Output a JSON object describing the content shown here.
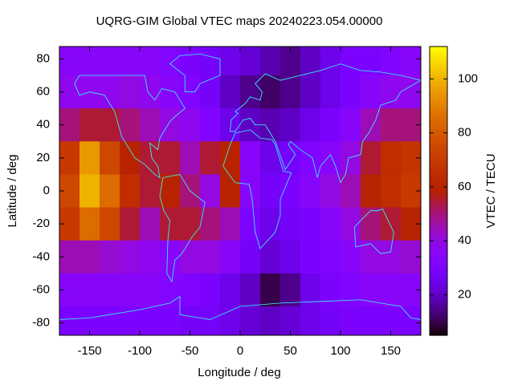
{
  "chart_data": {
    "type": "heatmap",
    "title": "UQRG-GIM Global VTEC maps 20240223.054.00000",
    "x_label": "Longitude / deg",
    "y_label": "Latitude / deg",
    "colorbar_label": "VTEC / TECU",
    "palette": "gnuplot-rgbformulae-7-5-15",
    "x": [
      -170,
      -150,
      -130,
      -110,
      -90,
      -70,
      -50,
      -30,
      -10,
      10,
      30,
      50,
      70,
      90,
      110,
      130,
      150,
      170
    ],
    "y": [
      80,
      60,
      40,
      20,
      0,
      -20,
      -40,
      -60,
      -80
    ],
    "z": [
      [
        35,
        35,
        35,
        35,
        35,
        33,
        30,
        28,
        25,
        22,
        18,
        15,
        20,
        25,
        30,
        30,
        32,
        35
      ],
      [
        38,
        38,
        38,
        40,
        38,
        35,
        32,
        28,
        20,
        15,
        12,
        15,
        20,
        25,
        30,
        35,
        38,
        38
      ],
      [
        50,
        55,
        55,
        50,
        45,
        40,
        38,
        32,
        25,
        20,
        18,
        20,
        25,
        30,
        35,
        45,
        50,
        50
      ],
      [
        70,
        95,
        75,
        60,
        55,
        55,
        45,
        55,
        60,
        35,
        25,
        28,
        32,
        35,
        40,
        55,
        65,
        68
      ],
      [
        75,
        100,
        85,
        65,
        55,
        60,
        50,
        40,
        60,
        35,
        28,
        30,
        35,
        40,
        45,
        60,
        65,
        70
      ],
      [
        70,
        85,
        75,
        55,
        45,
        55,
        55,
        50,
        45,
        30,
        25,
        28,
        30,
        35,
        40,
        50,
        55,
        60
      ],
      [
        45,
        45,
        42,
        40,
        38,
        35,
        40,
        40,
        35,
        28,
        22,
        25,
        30,
        32,
        35,
        40,
        40,
        42
      ],
      [
        35,
        35,
        35,
        35,
        35,
        33,
        32,
        30,
        25,
        20,
        10,
        15,
        25,
        30,
        32,
        35,
        35,
        35
      ],
      [
        30,
        30,
        30,
        30,
        30,
        30,
        28,
        28,
        25,
        22,
        20,
        22,
        25,
        28,
        30,
        30,
        30,
        30
      ]
    ],
    "xlim": [
      -180,
      180
    ],
    "ylim": [
      -87.5,
      87.5
    ],
    "zlim": [
      5,
      112
    ],
    "xticks": [
      -150,
      -100,
      -50,
      0,
      50,
      100,
      150
    ],
    "yticks": [
      -80,
      -60,
      -40,
      -20,
      0,
      20,
      40,
      60,
      80
    ],
    "zticks": [
      20,
      40,
      60,
      80,
      100
    ]
  }
}
